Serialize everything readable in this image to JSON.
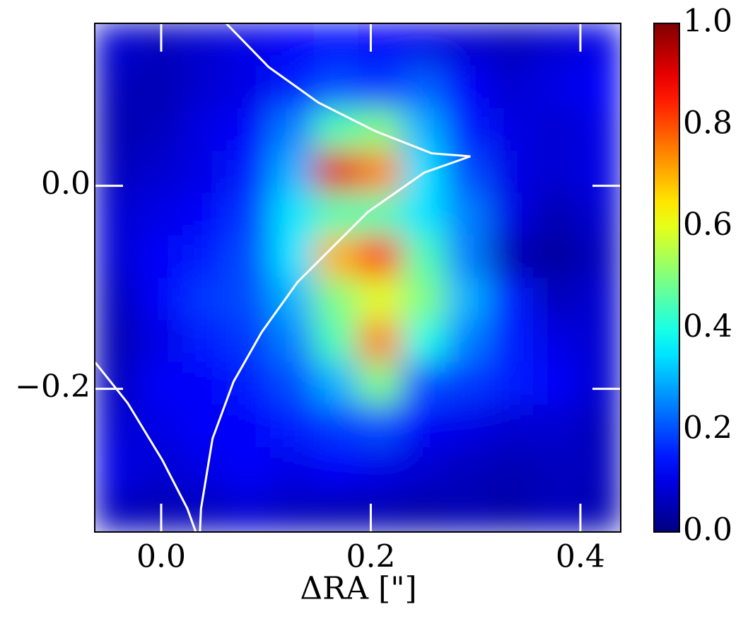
{
  "chart_data": {
    "type": "heatmap",
    "xlabel": "ΔRA [\"]",
    "xlim": [
      -0.0634,
      0.4385
    ],
    "ylim": [
      -0.341,
      0.16
    ],
    "xticks": [
      {
        "value": 0,
        "label": "0.0"
      },
      {
        "value": 0.2,
        "label": "0.2"
      },
      {
        "value": 0.4,
        "label": "0.4"
      }
    ],
    "yticks": [
      {
        "value": 0,
        "label": "0.0"
      },
      {
        "value": -0.2,
        "label": "−0.2"
      }
    ],
    "colormap": "jet",
    "zlim": [
      0,
      1
    ],
    "cticks": [
      {
        "value": 0,
        "label": "0.0"
      },
      {
        "value": 0.2,
        "label": "0.2"
      },
      {
        "value": 0.4,
        "label": "0.4"
      },
      {
        "value": 0.6,
        "label": "0.6"
      },
      {
        "value": 0.8,
        "label": "0.8"
      },
      {
        "value": 1,
        "label": "1.0"
      }
    ],
    "z": [
      [
        0.08,
        0.06,
        0.08,
        0.1,
        0.12,
        0.14,
        0.12,
        0.1,
        0.08,
        0.06,
        0.08,
        0.1
      ],
      [
        0.06,
        0.05,
        0.08,
        0.1,
        0.15,
        0.2,
        0.18,
        0.22,
        0.12,
        0.08,
        0.1,
        0.12
      ],
      [
        0.05,
        0.06,
        0.1,
        0.12,
        0.25,
        0.45,
        0.5,
        0.3,
        0.15,
        0.1,
        0.08,
        0.1
      ],
      [
        0.06,
        0.08,
        0.1,
        0.15,
        0.3,
        0.9,
        0.75,
        0.35,
        0.2,
        0.1,
        0.08,
        0.1
      ],
      [
        0.08,
        0.1,
        0.12,
        0.18,
        0.35,
        0.45,
        0.45,
        0.35,
        0.25,
        0.1,
        0.05,
        0.08
      ],
      [
        0.08,
        0.12,
        0.15,
        0.2,
        0.35,
        0.7,
        0.85,
        0.45,
        0.25,
        0.05,
        0.03,
        0.06
      ],
      [
        0.06,
        0.12,
        0.18,
        0.2,
        0.3,
        0.5,
        0.6,
        0.5,
        0.3,
        0.15,
        0.06,
        0.08
      ],
      [
        0.05,
        0.1,
        0.15,
        0.18,
        0.25,
        0.45,
        0.75,
        0.4,
        0.25,
        0.15,
        0.1,
        0.08
      ],
      [
        0.06,
        0.12,
        0.12,
        0.15,
        0.2,
        0.3,
        0.5,
        0.2,
        0.18,
        0.15,
        0.12,
        0.08
      ],
      [
        0.08,
        0.1,
        0.12,
        0.12,
        0.15,
        0.18,
        0.2,
        0.12,
        0.1,
        0.08,
        0.08,
        0.06
      ],
      [
        0.1,
        0.08,
        0.1,
        0.12,
        0.1,
        0.12,
        0.1,
        0.08,
        0.06,
        0.05,
        0.06,
        0.06
      ],
      [
        0.06,
        0.05,
        0.06,
        0.08,
        0.06,
        0.05,
        0.05,
        0.04,
        0.05,
        0.04,
        0.06,
        0.05
      ]
    ],
    "series": [
      {
        "color": "#ffffff",
        "x": [
          0.062,
          0.1025,
          0.15,
          0.204,
          0.258,
          0.295,
          0.251,
          0.197,
          0.13,
          0.096,
          0.069,
          0.049,
          0.038,
          0.037
        ],
        "y": [
          0.16,
          0.117,
          0.082,
          0.054,
          0.032,
          0.029,
          0.013,
          -0.026,
          -0.095,
          -0.144,
          -0.193,
          -0.249,
          -0.318,
          -0.341
        ]
      },
      {
        "color": "#ffffff",
        "x": [
          -0.063,
          -0.032,
          0.001,
          0.025,
          0.033
        ],
        "y": [
          -0.174,
          -0.214,
          -0.27,
          -0.318,
          -0.341
        ]
      }
    ]
  }
}
